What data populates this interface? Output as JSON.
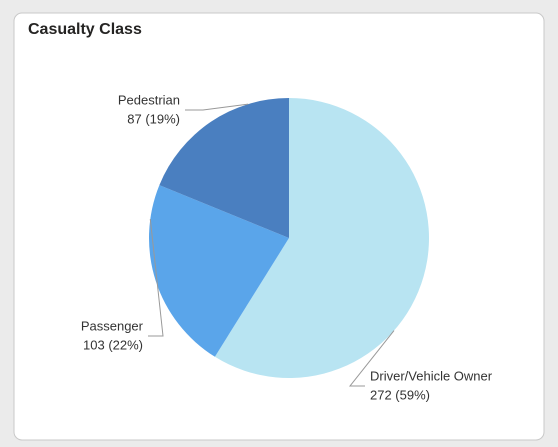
{
  "chart_data": {
    "type": "pie",
    "title": "Casualty Class",
    "categories": [
      "Driver/Vehicle Owner",
      "Passenger",
      "Pedestrian"
    ],
    "values": [
      272,
      103,
      87
    ],
    "value_labels": [
      "272 (59%)",
      "103 (22%)",
      "87 (19%)"
    ],
    "colors": [
      "#b8e4f2",
      "#5aa5ea",
      "#4a7fc0"
    ]
  }
}
